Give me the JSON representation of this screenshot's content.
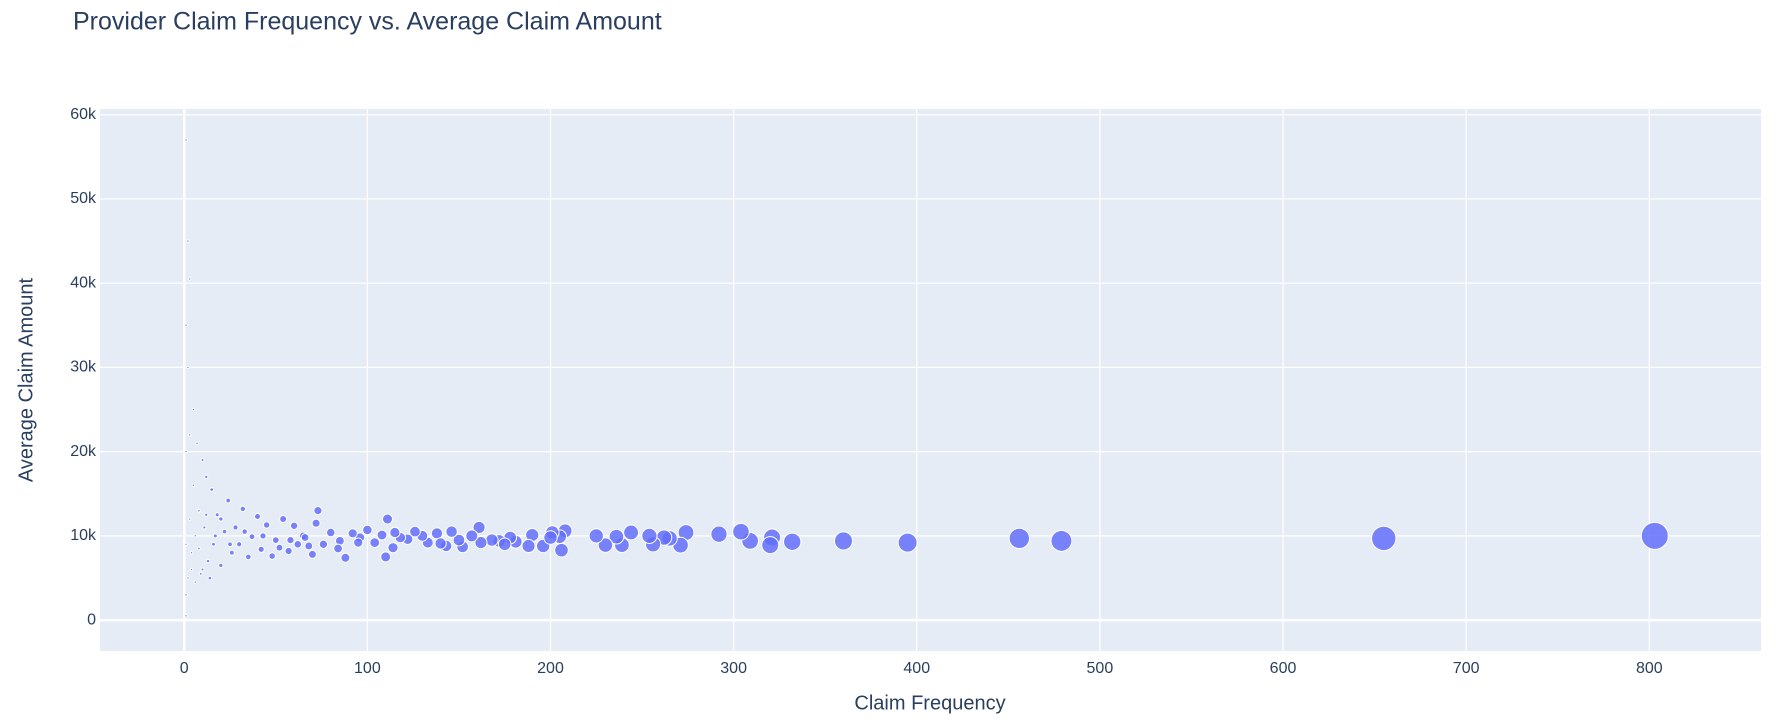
{
  "chart_data": {
    "type": "scatter",
    "title": "Provider Claim Frequency vs. Average Claim Amount",
    "x_label": "Claim Frequency",
    "y_label": "Average Claim Amount",
    "color": "#636efa",
    "grid": true,
    "xlim": [
      -46,
      861
    ],
    "ylim": [
      -3670,
      60680
    ],
    "xticks": [
      0,
      100,
      200,
      300,
      400,
      500,
      600,
      700,
      800
    ],
    "yticks": [
      0,
      {
        "value": 10000,
        "label": "10k"
      },
      {
        "value": 20000,
        "label": "20k"
      },
      {
        "value": 30000,
        "label": "30k"
      },
      {
        "value": 40000,
        "label": "40k"
      },
      {
        "value": 50000,
        "label": "50k"
      },
      {
        "value": 60000,
        "label": "60k"
      }
    ],
    "x": [
      803,
      655,
      479,
      456,
      395,
      360,
      332,
      321,
      320,
      309,
      304,
      292,
      274,
      271,
      265,
      262,
      256,
      254,
      244,
      239,
      236,
      230,
      225,
      208,
      206,
      205,
      201,
      196,
      190,
      188,
      181,
      178,
      172,
      168,
      162,
      161,
      157,
      152,
      150,
      146,
      143,
      138,
      133,
      130,
      126,
      122,
      118,
      114,
      111,
      110,
      108,
      104,
      100,
      96,
      92,
      88,
      85,
      80,
      76,
      73,
      72,
      68,
      65,
      62,
      60,
      57,
      54,
      50,
      48,
      45,
      42,
      40,
      37,
      35,
      32,
      30,
      28,
      26,
      24,
      22,
      20,
      18,
      16,
      15,
      13,
      12,
      11,
      10,
      9,
      8,
      7,
      6,
      5,
      5,
      4,
      3,
      3,
      2,
      2,
      1,
      1,
      1,
      1,
      1,
      1,
      2,
      3,
      4,
      6,
      8,
      10,
      12,
      14,
      17,
      20,
      25,
      33,
      43,
      52,
      58,
      66,
      70,
      84,
      95,
      115,
      140,
      175,
      200
    ],
    "values": [
      10000,
      9700,
      9400,
      9700,
      9200,
      9400,
      9300,
      9800,
      8900,
      9400,
      10500,
      10200,
      10400,
      8900,
      9700,
      9800,
      9000,
      10000,
      10400,
      8900,
      9900,
      8900,
      10000,
      10600,
      8300,
      9900,
      10400,
      8800,
      10100,
      8800,
      9300,
      9800,
      9400,
      9500,
      9200,
      11000,
      10000,
      8700,
      9500,
      10500,
      8800,
      10300,
      9200,
      10000,
      10500,
      9600,
      9800,
      8600,
      12000,
      7500,
      10100,
      9200,
      10700,
      9800,
      10300,
      7400,
      9400,
      10400,
      9000,
      13000,
      11500,
      8800,
      10000,
      9000,
      11200,
      8200,
      12000,
      9500,
      7600,
      11300,
      8400,
      12300,
      9900,
      7500,
      13200,
      9000,
      11000,
      8000,
      14200,
      10500,
      6500,
      12500,
      9000,
      15500,
      7000,
      17000,
      11000,
      19000,
      5500,
      13000,
      21000,
      4500,
      16000,
      25000,
      8000,
      40500,
      12000,
      30000,
      5000,
      57000,
      35000,
      20000,
      9000,
      3000,
      500,
      45000,
      22000,
      6000,
      10000,
      8500,
      6000,
      12500,
      5000,
      10000,
      12000,
      9000,
      10500,
      10000,
      8600,
      9500,
      9800,
      7800,
      8500,
      9200,
      10400,
      9100,
      9000,
      9800
    ]
  }
}
